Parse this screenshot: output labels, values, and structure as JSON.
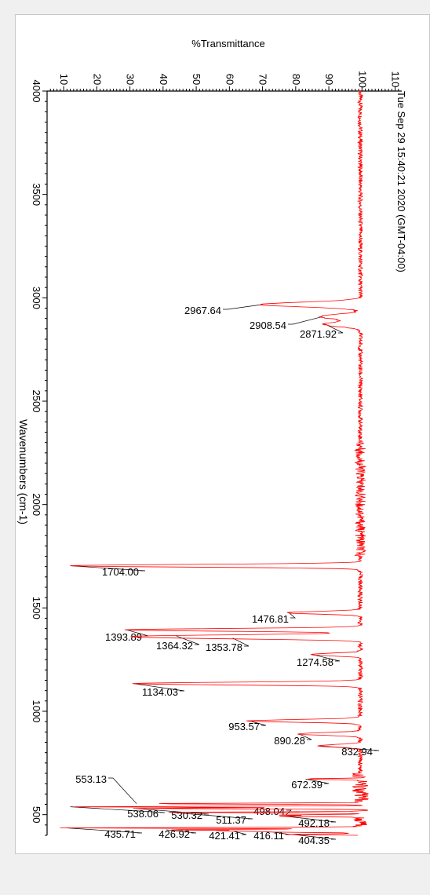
{
  "chart_data": {
    "type": "line",
    "title": "%Transmittance",
    "xlabel": "Wavenumbers (cm-1)",
    "timestamp": "Tue Sep 29 15:40:21 2020 (GMT-04:00)",
    "x_range": [
      4000,
      400
    ],
    "y_range": [
      5,
      112
    ],
    "x_ticks": [
      4000,
      3500,
      3000,
      2500,
      2000,
      1500,
      1000,
      500
    ],
    "y_ticks": [
      10,
      20,
      30,
      40,
      50,
      60,
      70,
      80,
      90,
      100,
      110
    ],
    "series_color": "#ff0000",
    "baseline": 100,
    "peaks": [
      {
        "x": 2967.64,
        "y": 70,
        "label": "2967.64"
      },
      {
        "x": 2908.54,
        "y": 88,
        "label": "2908.54"
      },
      {
        "x": 2871.92,
        "y": 89,
        "label": "2871.92"
      },
      {
        "x": 1704.0,
        "y": 12,
        "label": "1704.00"
      },
      {
        "x": 1476.81,
        "y": 78,
        "label": "1476.81"
      },
      {
        "x": 1393.89,
        "y": 29,
        "label": "1393.89"
      },
      {
        "x": 1364.32,
        "y": 44,
        "label": "1364.32"
      },
      {
        "x": 1353.78,
        "y": 61,
        "label": "1353.78"
      },
      {
        "x": 1274.58,
        "y": 85,
        "label": "1274.58"
      },
      {
        "x": 1134.03,
        "y": 31,
        "label": "1134.03"
      },
      {
        "x": 953.57,
        "y": 66,
        "label": "953.57"
      },
      {
        "x": 890.28,
        "y": 81,
        "label": "890.28"
      },
      {
        "x": 832.94,
        "y": 87,
        "label": "832.94"
      },
      {
        "x": 672.39,
        "y": 83,
        "label": "672.39"
      },
      {
        "x": 553.13,
        "y": 32,
        "label": "553.13"
      },
      {
        "x": 538.06,
        "y": 12,
        "label": "538.06"
      },
      {
        "x": 530.32,
        "y": 31,
        "label": "530.32"
      },
      {
        "x": 511.37,
        "y": 42,
        "label": "511.37"
      },
      {
        "x": 498.04,
        "y": 77,
        "label": "498.04"
      },
      {
        "x": 492.18,
        "y": 77,
        "label": "492.18"
      },
      {
        "x": 435.71,
        "y": 11,
        "label": "435.71"
      },
      {
        "x": 426.92,
        "y": 41,
        "label": "426.92"
      },
      {
        "x": 421.41,
        "y": 61,
        "label": "421.41"
      },
      {
        "x": 416.11,
        "y": 73,
        "label": "416.11"
      },
      {
        "x": 404.35,
        "y": 79,
        "label": "404.35"
      }
    ]
  }
}
